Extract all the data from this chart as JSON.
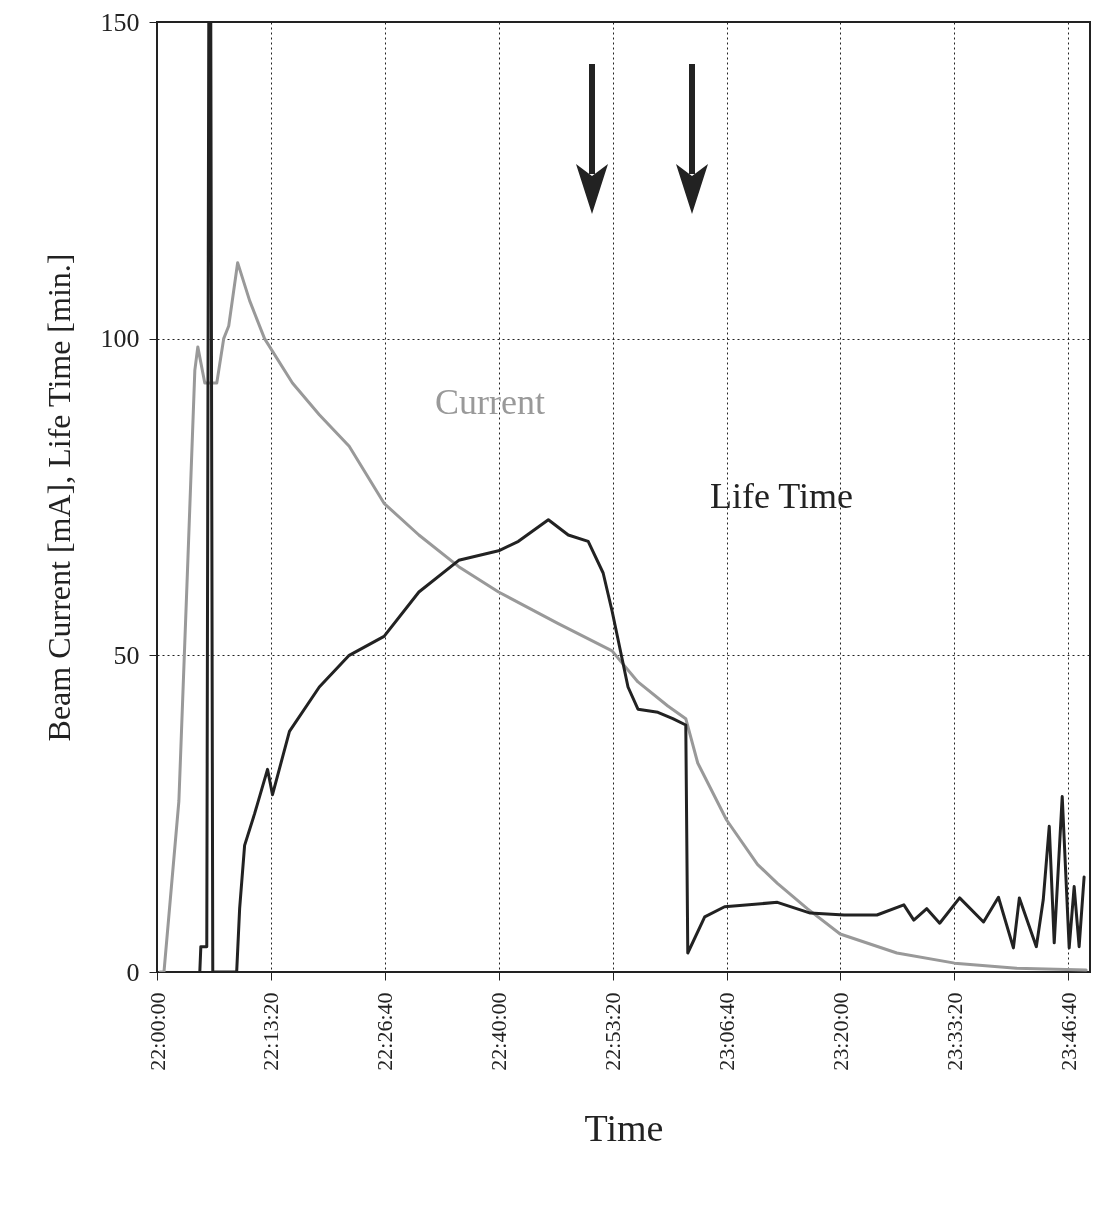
{
  "chart_data": {
    "type": "line",
    "xlabel": "Time",
    "ylabel": "Beam Current [mA], Life Time [min.]",
    "xlim": [
      22,
      23.82
    ],
    "ylim": [
      0,
      150
    ],
    "yticks": [
      0,
      50,
      100,
      150
    ],
    "xticks": [
      {
        "value": 22,
        "label": "22:00:00"
      },
      {
        "value": 22.2222,
        "label": "22:13:20"
      },
      {
        "value": 22.4444,
        "label": "22:26:40"
      },
      {
        "value": 22.6667,
        "label": "22:40:00"
      },
      {
        "value": 22.8889,
        "label": "22:53:20"
      },
      {
        "value": 23.1111,
        "label": "23:06:40"
      },
      {
        "value": 23.3333,
        "label": "23:20:00"
      },
      {
        "value": 23.5556,
        "label": "23:33:20"
      },
      {
        "value": 23.7778,
        "label": "23:46:40"
      }
    ],
    "grid": true,
    "legend": false,
    "series": [
      {
        "name": "Current",
        "color": "#999999",
        "x": [
          22.0058,
          22.0136,
          22.0427,
          22.0602,
          22.0738,
          22.0796,
          22.0932,
          22.1166,
          22.1301,
          22.1399,
          22.1573,
          22.1807,
          22.2098,
          22.2642,
          22.3166,
          22.3749,
          22.4429,
          22.5109,
          22.5886,
          22.6663,
          22.7828,
          22.8877,
          22.9382,
          22.9965,
          23.0315,
          23.0548,
          23.1111,
          23.1713,
          23.2102,
          23.2685,
          23.3326,
          23.4433,
          23.5559,
          23.6764,
          23.8124
        ],
        "values": [
          0,
          0,
          27,
          65,
          95,
          98.7,
          93,
          93,
          100,
          102,
          112,
          106,
          100,
          93,
          88,
          83,
          74,
          69,
          64,
          60,
          55,
          50.7,
          45.8,
          42,
          40,
          33,
          24,
          17,
          14,
          10,
          6,
          3,
          1.4,
          0.6,
          0.3
        ]
      },
      {
        "name": "Life Time",
        "color": "#222222",
        "x": [
          22.0835,
          22.0855,
          22.0971,
          22.101,
          22.1049,
          22.1088,
          22.1554,
          22.1612,
          22.1709,
          22.1904,
          22.2156,
          22.2253,
          22.2584,
          22.3166,
          22.3749,
          22.4429,
          22.5109,
          22.5886,
          22.6663,
          22.7051,
          22.7634,
          22.8023,
          22.8411,
          22.8703,
          22.8877,
          22.9188,
          22.9382,
          22.9771,
          23.0062,
          23.0315,
          23.0354,
          23.0684,
          23.1072,
          23.2102,
          23.2743,
          23.3403,
          23.4044,
          23.4569,
          23.4763,
          23.5016,
          23.5268,
          23.5657,
          23.6123,
          23.6414,
          23.6706,
          23.6822,
          23.7153,
          23.7288,
          23.7405,
          23.7502,
          23.7658,
          23.7794,
          23.7891,
          23.7988,
          23.8085
        ],
        "values": [
          0,
          4,
          4,
          150,
          150,
          0,
          0,
          10,
          20,
          25,
          32,
          28,
          38,
          45,
          50,
          53,
          60,
          65,
          66.5,
          68,
          71.4,
          69,
          68,
          63,
          57,
          45,
          41.5,
          41,
          40,
          39,
          3,
          8.7,
          10.3,
          11,
          9.3,
          9,
          9,
          10.6,
          8.2,
          10,
          7.7,
          11.7,
          7.9,
          11.8,
          3.8,
          11.7,
          4,
          11.4,
          23,
          4.6,
          27.7,
          3.8,
          13.5,
          4,
          15
        ]
      }
    ]
  }
}
